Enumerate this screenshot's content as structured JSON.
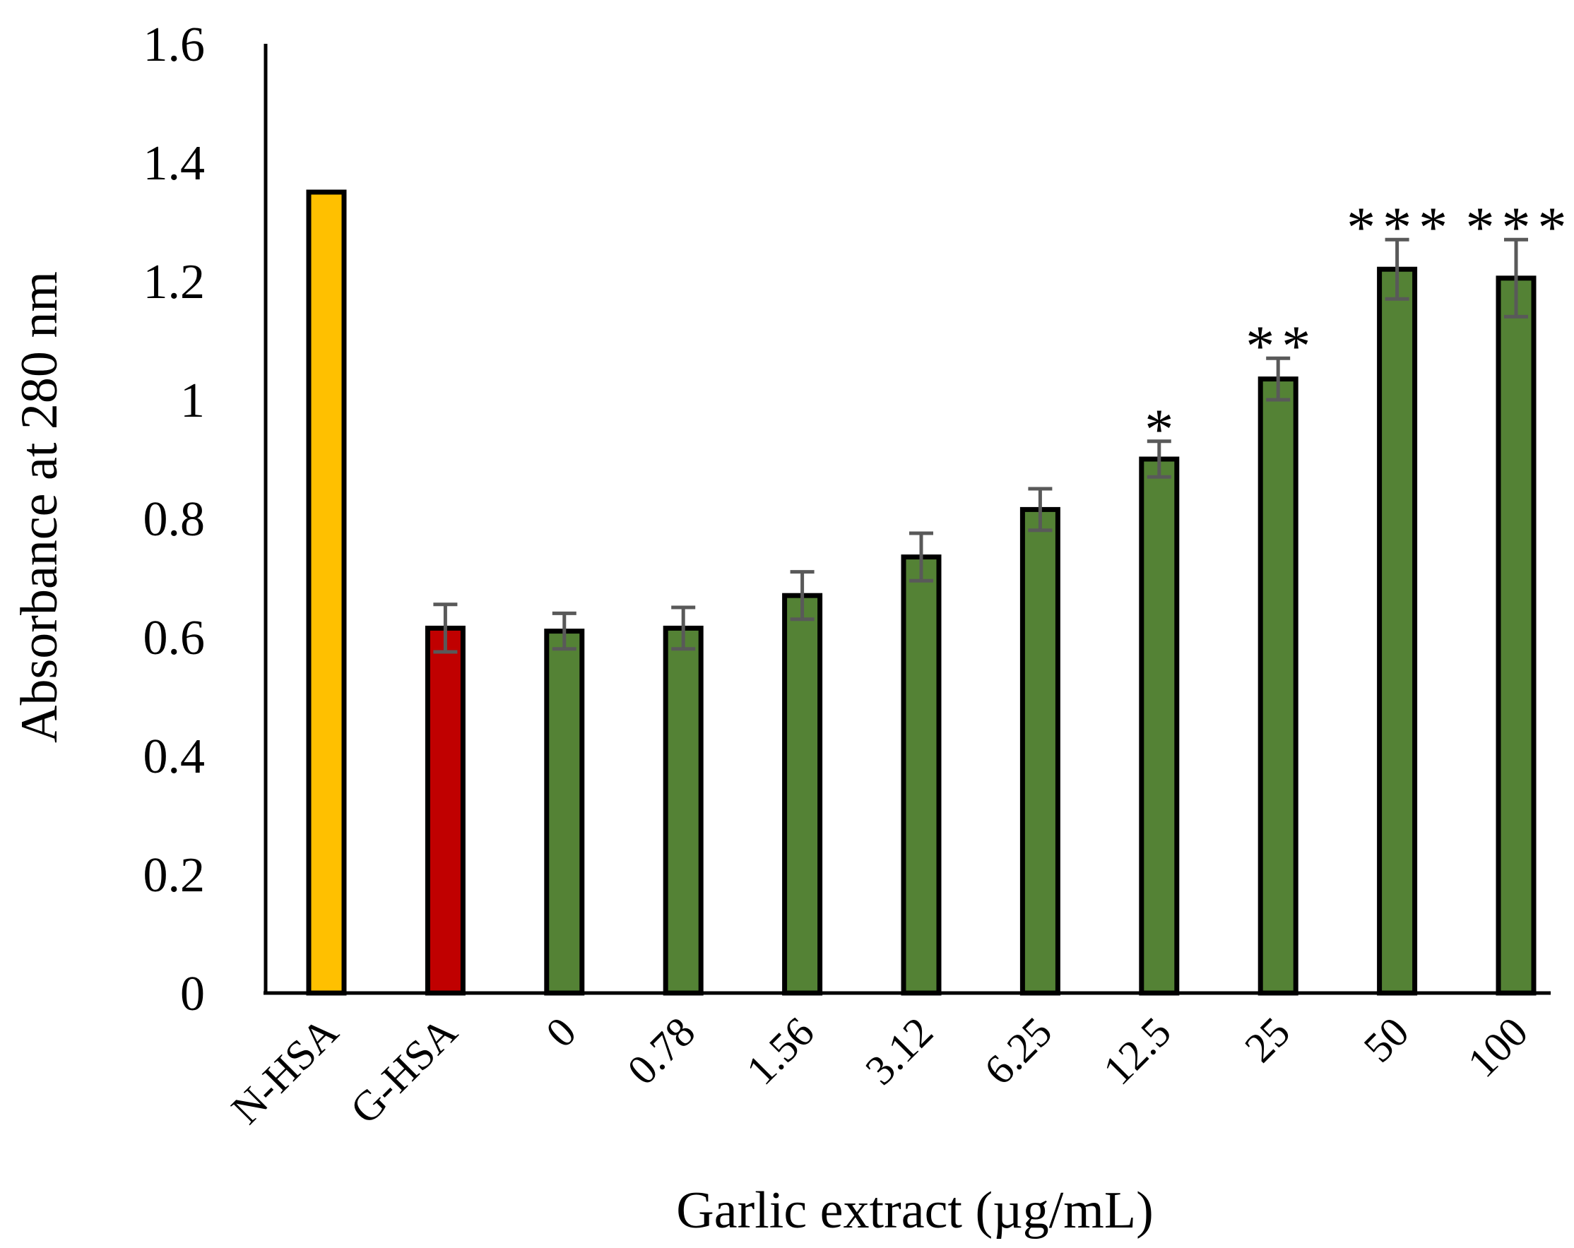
{
  "chart_data": {
    "type": "bar",
    "title": "",
    "xlabel": "Garlic extract (µg/mL)",
    "ylabel": "Absorbance at 280 nm",
    "ylim": [
      0,
      1.6
    ],
    "yticks": [
      "0",
      "0.2",
      "0.4",
      "0.6",
      "0.8",
      "1",
      "1.2",
      "1.4",
      "1.6"
    ],
    "grid": false,
    "legend": "none",
    "categories": [
      "N-HSA",
      "G-HSA",
      "0",
      "0.78",
      "1.56",
      "3.12",
      "6.25",
      "12.5",
      "25",
      "50",
      "100"
    ],
    "values": [
      1.35,
      0.615,
      0.61,
      0.615,
      0.67,
      0.735,
      0.815,
      0.9,
      1.035,
      1.22,
      1.205
    ],
    "errors": [
      0,
      0.04,
      0.03,
      0.035,
      0.04,
      0.04,
      0.035,
      0.03,
      0.035,
      0.05,
      0.065
    ],
    "significance": [
      "",
      "",
      "",
      "",
      "",
      "",
      "",
      "*",
      "**",
      "***",
      "***"
    ],
    "colors": [
      "#FFC000",
      "#C00000",
      "#548235",
      "#548235",
      "#548235",
      "#548235",
      "#548235",
      "#548235",
      "#548235",
      "#548235",
      "#548235"
    ],
    "bar_outline_color": "#000000",
    "error_bar_color": "#595959"
  }
}
